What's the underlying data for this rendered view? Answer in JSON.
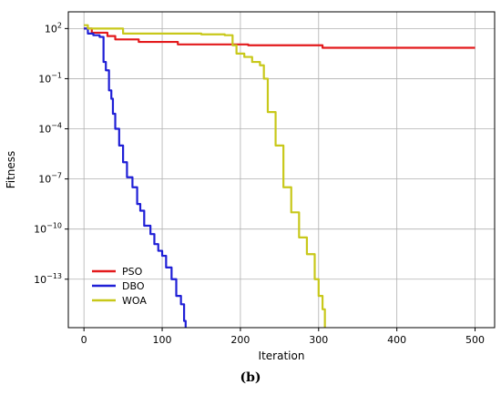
{
  "caption": "(b)",
  "chart_data": {
    "type": "line",
    "xlabel": "Iteration",
    "ylabel": "Fitness",
    "xlim": [
      -20,
      525
    ],
    "ylim_log10": [
      -15.9,
      3.0
    ],
    "y_scale": "log",
    "x_ticks": [
      0,
      100,
      200,
      300,
      400,
      500
    ],
    "y_ticks": [
      {
        "exp": 2,
        "label": "10^2"
      },
      {
        "exp": -1,
        "label": "10^-1"
      },
      {
        "exp": -4,
        "label": "10^-4"
      },
      {
        "exp": -7,
        "label": "10^-7"
      },
      {
        "exp": -10,
        "label": "10^-10"
      },
      {
        "exp": -13,
        "label": "10^-13"
      }
    ],
    "grid": true,
    "legend_position": "lower-left",
    "series": [
      {
        "name": "PSO",
        "color": "#e31a1c",
        "points_log10": [
          [
            0,
            2.0
          ],
          [
            10,
            1.75
          ],
          [
            30,
            1.55
          ],
          [
            40,
            1.35
          ],
          [
            70,
            1.2
          ],
          [
            120,
            1.05
          ],
          [
            210,
            1.0
          ],
          [
            300,
            1.0
          ],
          [
            305,
            0.85
          ],
          [
            500,
            0.85
          ]
        ]
      },
      {
        "name": "DBO",
        "color": "#1f1fd6",
        "points_log10": [
          [
            0,
            2.0
          ],
          [
            5,
            1.7
          ],
          [
            12,
            1.6
          ],
          [
            20,
            1.5
          ],
          [
            25,
            0.0
          ],
          [
            28,
            -0.5
          ],
          [
            32,
            -1.7
          ],
          [
            35,
            -2.2
          ],
          [
            37,
            -3.1
          ],
          [
            40,
            -4.0
          ],
          [
            45,
            -5.0
          ],
          [
            50,
            -6.0
          ],
          [
            55,
            -6.9
          ],
          [
            62,
            -7.5
          ],
          [
            68,
            -8.5
          ],
          [
            72,
            -8.9
          ],
          [
            77,
            -9.8
          ],
          [
            85,
            -10.3
          ],
          [
            90,
            -10.9
          ],
          [
            95,
            -11.3
          ],
          [
            100,
            -11.6
          ],
          [
            105,
            -12.3
          ],
          [
            112,
            -13.0
          ],
          [
            118,
            -14.0
          ],
          [
            124,
            -14.5
          ],
          [
            128,
            -15.5
          ],
          [
            130,
            -15.9
          ]
        ]
      },
      {
        "name": "WOA",
        "color": "#c8c81a",
        "points_log10": [
          [
            0,
            2.2
          ],
          [
            5,
            2.0
          ],
          [
            50,
            1.7
          ],
          [
            100,
            1.7
          ],
          [
            150,
            1.65
          ],
          [
            180,
            1.6
          ],
          [
            190,
            1.0
          ],
          [
            195,
            0.5
          ],
          [
            205,
            0.3
          ],
          [
            215,
            0.0
          ],
          [
            225,
            -0.2
          ],
          [
            230,
            -1.0
          ],
          [
            235,
            -3.0
          ],
          [
            245,
            -5.0
          ],
          [
            255,
            -7.5
          ],
          [
            265,
            -9.0
          ],
          [
            275,
            -10.5
          ],
          [
            285,
            -11.5
          ],
          [
            295,
            -13.0
          ],
          [
            300,
            -14.0
          ],
          [
            305,
            -14.8
          ],
          [
            308,
            -15.9
          ]
        ]
      }
    ]
  }
}
